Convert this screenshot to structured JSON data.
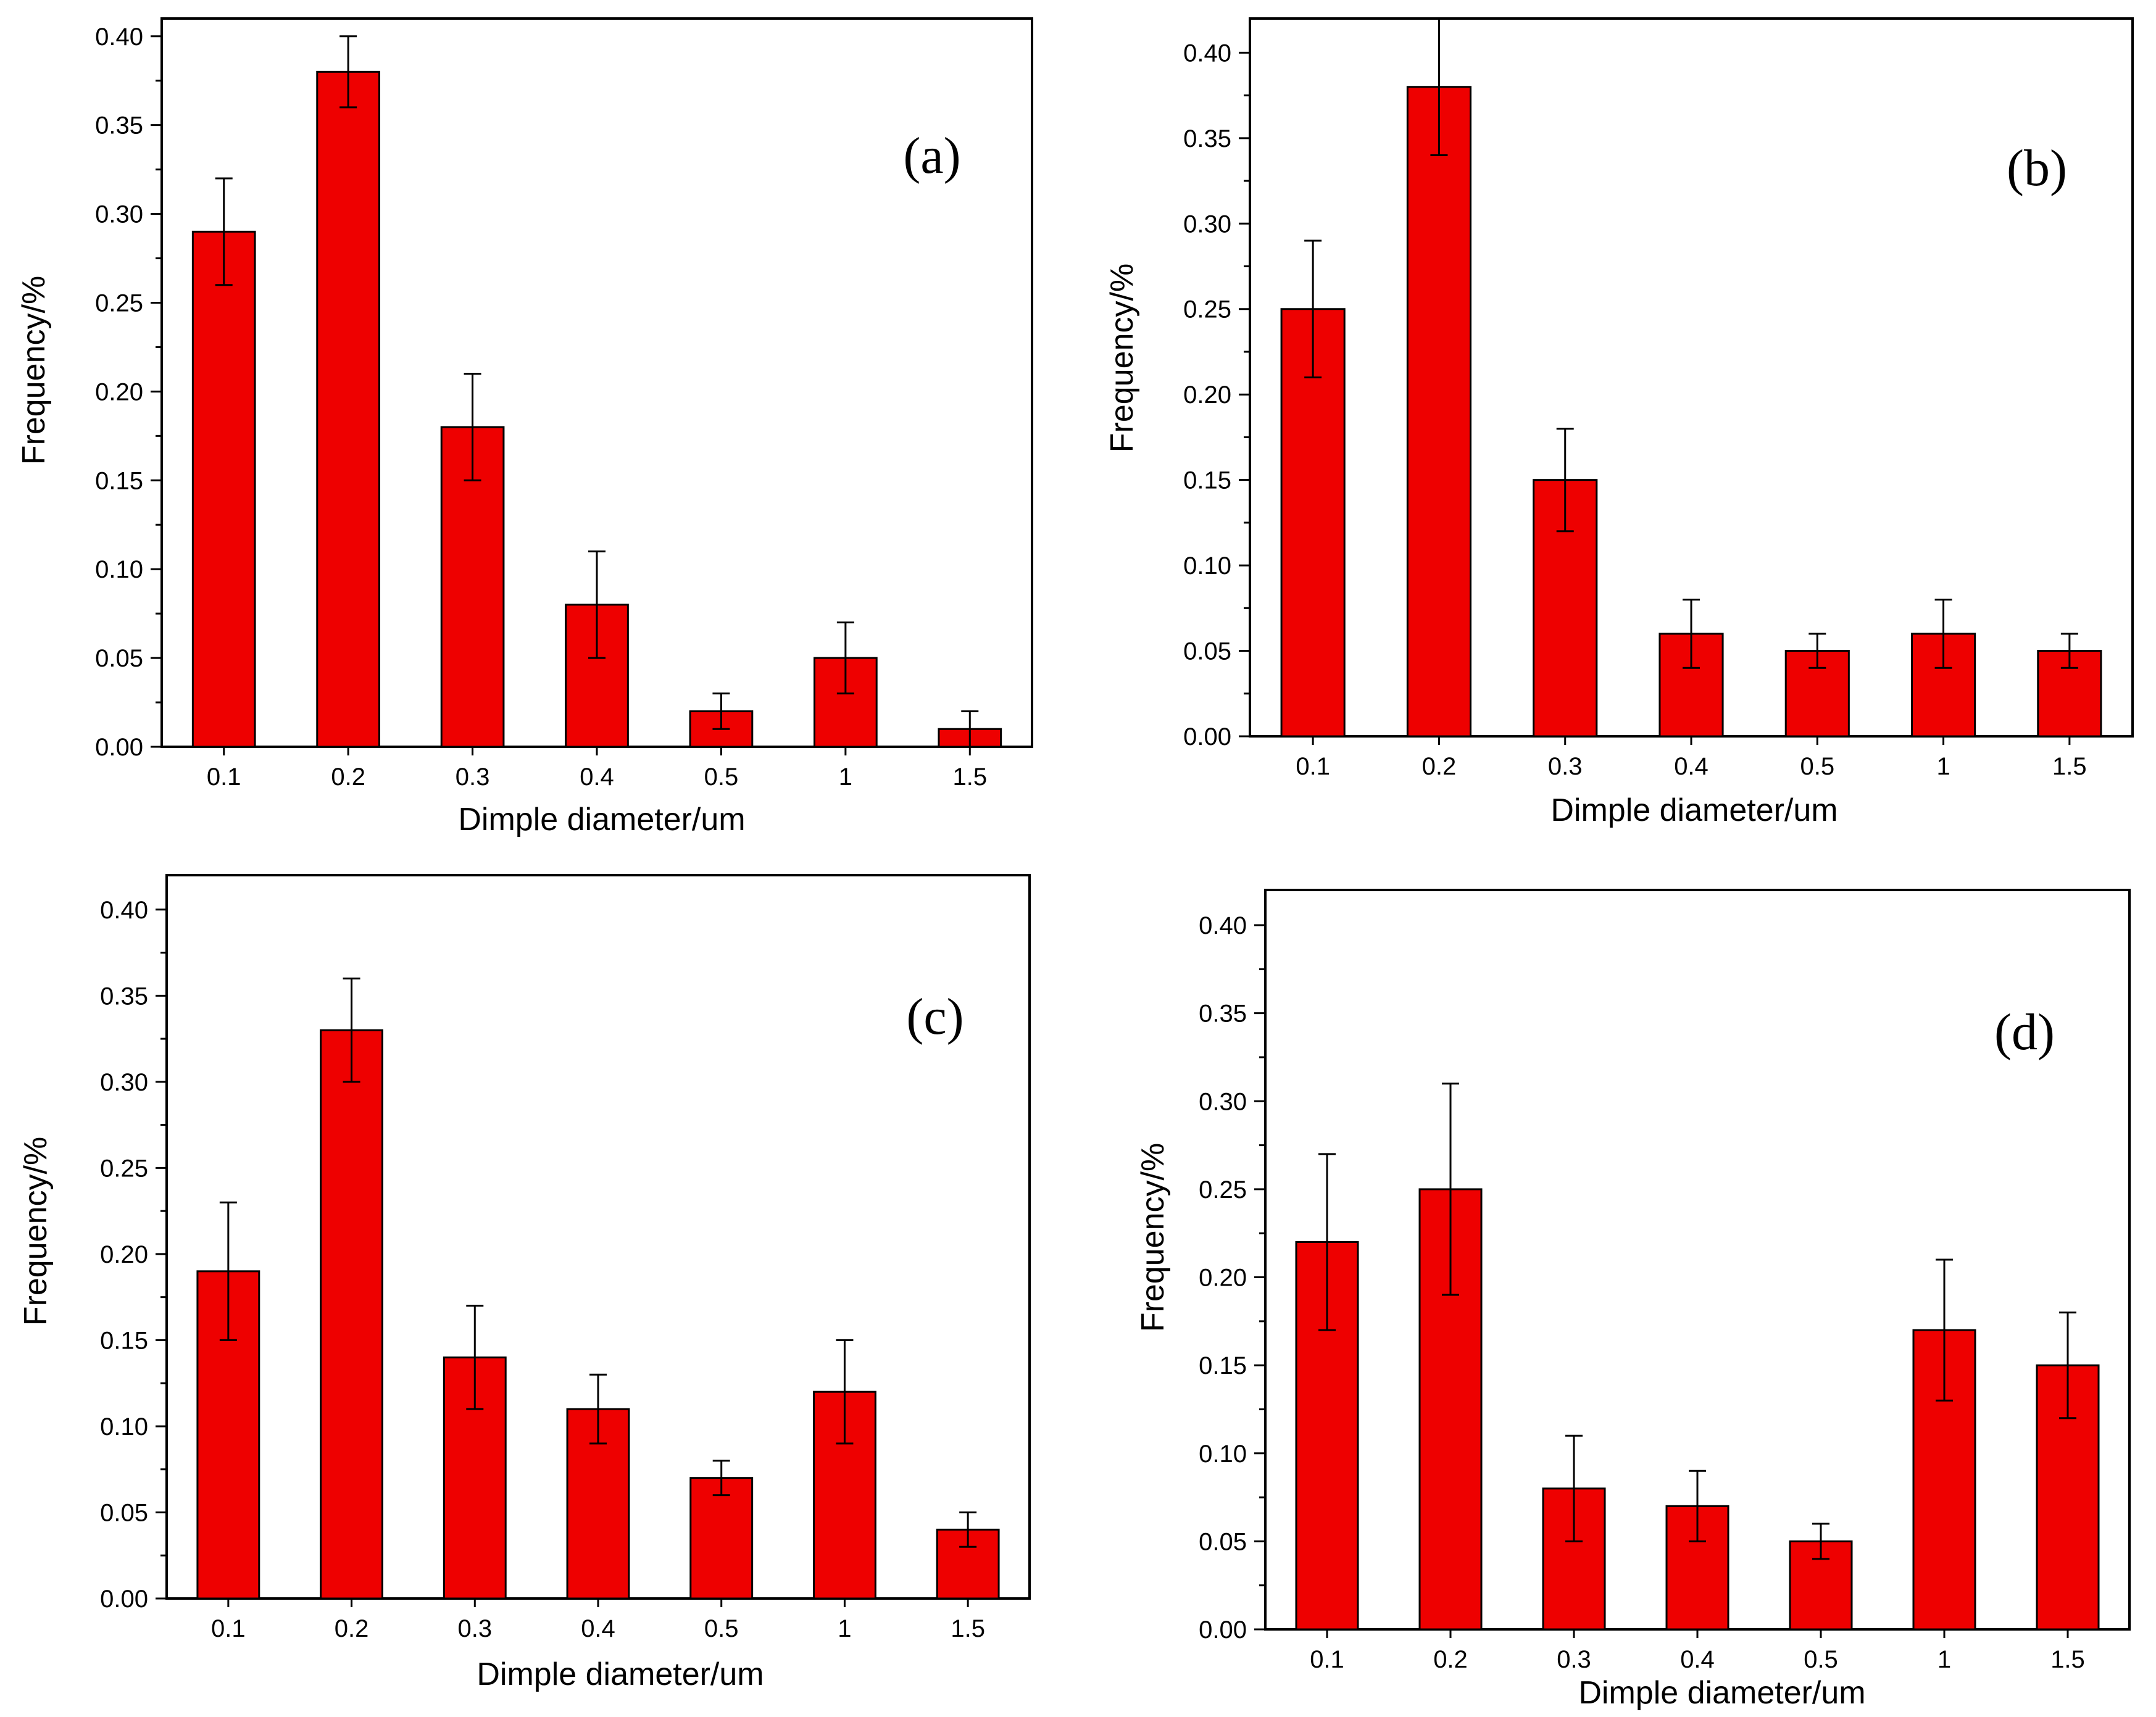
{
  "colors": {
    "bar": "#ee0000",
    "axis": "#000000",
    "background": "#ffffff"
  },
  "chart_data": [
    {
      "panel": "(a)",
      "type": "bar",
      "categories": [
        "0.1",
        "0.2",
        "0.3",
        "0.4",
        "0.5",
        "1",
        "1.5"
      ],
      "values": [
        0.29,
        0.38,
        0.18,
        0.08,
        0.02,
        0.05,
        0.01
      ],
      "errors": [
        0.03,
        0.02,
        0.03,
        0.03,
        0.01,
        0.02,
        0.01
      ],
      "xlabel": "Dimple diameter/um",
      "ylabel": "Frequency/%",
      "ylim": [
        0,
        0.41
      ],
      "yticks": [
        "0.00",
        "0.05",
        "0.10",
        "0.15",
        "0.20",
        "0.25",
        "0.30",
        "0.35",
        "0.40"
      ],
      "yticks_values": [
        0,
        0.05,
        0.1,
        0.15,
        0.2,
        0.25,
        0.3,
        0.35,
        0.4
      ]
    },
    {
      "panel": "(b)",
      "type": "bar",
      "categories": [
        "0.1",
        "0.2",
        "0.3",
        "0.4",
        "0.5",
        "1",
        "1.5"
      ],
      "values": [
        0.25,
        0.38,
        0.15,
        0.06,
        0.05,
        0.06,
        0.05
      ],
      "errors": [
        0.04,
        0.04,
        0.03,
        0.02,
        0.01,
        0.02,
        0.01
      ],
      "xlabel": "Dimple diameter/um",
      "ylabel": "Frequency/%",
      "ylim": [
        0,
        0.42
      ],
      "yticks": [
        "0.00",
        "0.05",
        "0.10",
        "0.15",
        "0.20",
        "0.25",
        "0.30",
        "0.35",
        "0.40"
      ],
      "yticks_values": [
        0,
        0.05,
        0.1,
        0.15,
        0.2,
        0.25,
        0.3,
        0.35,
        0.4
      ]
    },
    {
      "panel": "(c)",
      "type": "bar",
      "categories": [
        "0.1",
        "0.2",
        "0.3",
        "0.4",
        "0.5",
        "1",
        "1.5"
      ],
      "values": [
        0.19,
        0.33,
        0.14,
        0.11,
        0.07,
        0.12,
        0.04
      ],
      "errors": [
        0.04,
        0.03,
        0.03,
        0.02,
        0.01,
        0.03,
        0.01
      ],
      "xlabel": "Dimple diameter/um",
      "ylabel": "Frequency/%",
      "ylim": [
        0,
        0.42
      ],
      "yticks": [
        "0.00",
        "0.05",
        "0.10",
        "0.15",
        "0.20",
        "0.25",
        "0.30",
        "0.35",
        "0.40"
      ],
      "yticks_values": [
        0,
        0.05,
        0.1,
        0.15,
        0.2,
        0.25,
        0.3,
        0.35,
        0.4
      ]
    },
    {
      "panel": "(d)",
      "type": "bar",
      "categories": [
        "0.1",
        "0.2",
        "0.3",
        "0.4",
        "0.5",
        "1",
        "1.5"
      ],
      "values": [
        0.22,
        0.25,
        0.08,
        0.07,
        0.05,
        0.17,
        0.15
      ],
      "errors": [
        0.05,
        0.06,
        0.03,
        0.02,
        0.01,
        0.04,
        0.03
      ],
      "xlabel": "Dimple diameter/um",
      "ylabel": "Frequency/%",
      "ylim": [
        0,
        0.42
      ],
      "yticks": [
        "0.00",
        "0.05",
        "0.10",
        "0.15",
        "0.20",
        "0.25",
        "0.30",
        "0.35",
        "0.40"
      ],
      "yticks_values": [
        0,
        0.05,
        0.1,
        0.15,
        0.2,
        0.25,
        0.3,
        0.35,
        0.4
      ]
    }
  ]
}
